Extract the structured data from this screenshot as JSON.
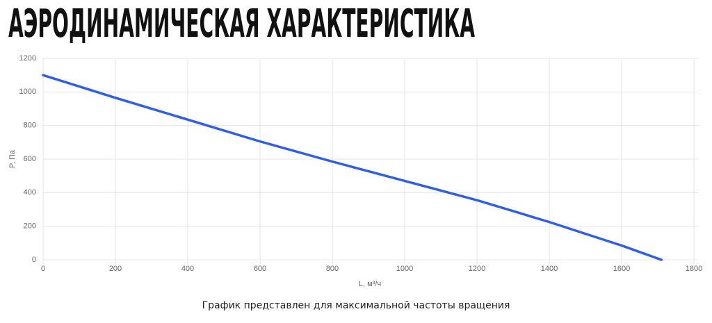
{
  "title": "АЭРОДИНАМИЧЕСКАЯ ХАРАКТЕРИСТИКА",
  "chart_data": {
    "type": "line",
    "x_label": "L, м³/ч",
    "y_label": "P, Па",
    "x": [
      0,
      200,
      400,
      600,
      800,
      1000,
      1200,
      1400,
      1600,
      1710
    ],
    "series": [
      {
        "color": "#2f5ee8",
        "values": [
          1100,
          965,
          835,
          705,
          585,
          470,
          355,
          225,
          85,
          0
        ]
      }
    ],
    "xlim": [
      0,
      1800
    ],
    "xticks": [
      0,
      200,
      400,
      600,
      800,
      1000,
      1200,
      1400,
      1600,
      1800
    ],
    "ylim": [
      0,
      1200
    ],
    "yticks": [
      0,
      200,
      400,
      600,
      800,
      1000,
      1200
    ],
    "grid": true
  },
  "footnote": "График представлен для максимальной частоты вращения"
}
